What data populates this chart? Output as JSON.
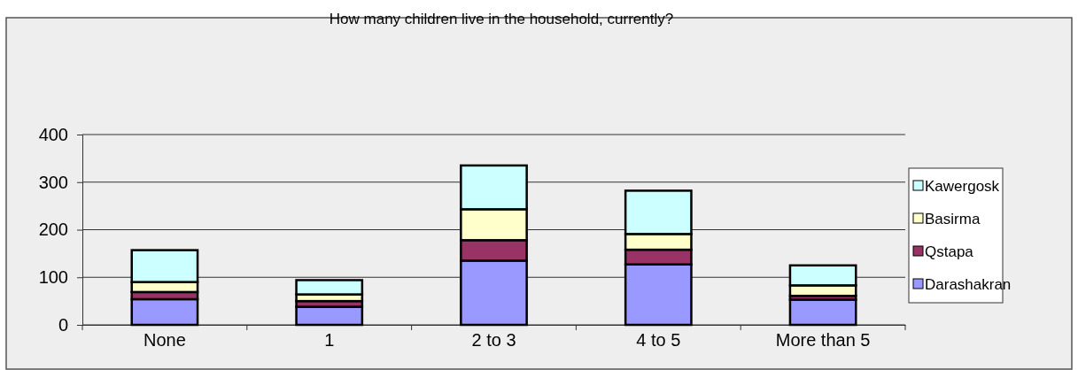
{
  "chart_data": {
    "type": "bar",
    "title": "How many children live in the household, currently?",
    "categories": [
      "None",
      "1",
      "2 to 3",
      "4 to 5",
      "More than 5"
    ],
    "stacked": true,
    "series": [
      {
        "name": "Darashakran",
        "color": "#9999ff",
        "values": [
          54,
          38,
          135,
          127,
          53
        ]
      },
      {
        "name": "Qstapa",
        "color": "#993366",
        "values": [
          15,
          12,
          43,
          31,
          8
        ]
      },
      {
        "name": "Basirma",
        "color": "#ffffcc",
        "values": [
          21,
          14,
          65,
          33,
          22
        ]
      },
      {
        "name": "Kawergosk",
        "color": "#ccffff",
        "values": [
          67,
          30,
          92,
          91,
          42
        ]
      }
    ],
    "ylim": [
      0,
      400
    ],
    "yticks": [
      0,
      100,
      200,
      300,
      400
    ],
    "grid": "y",
    "legend": "right"
  }
}
